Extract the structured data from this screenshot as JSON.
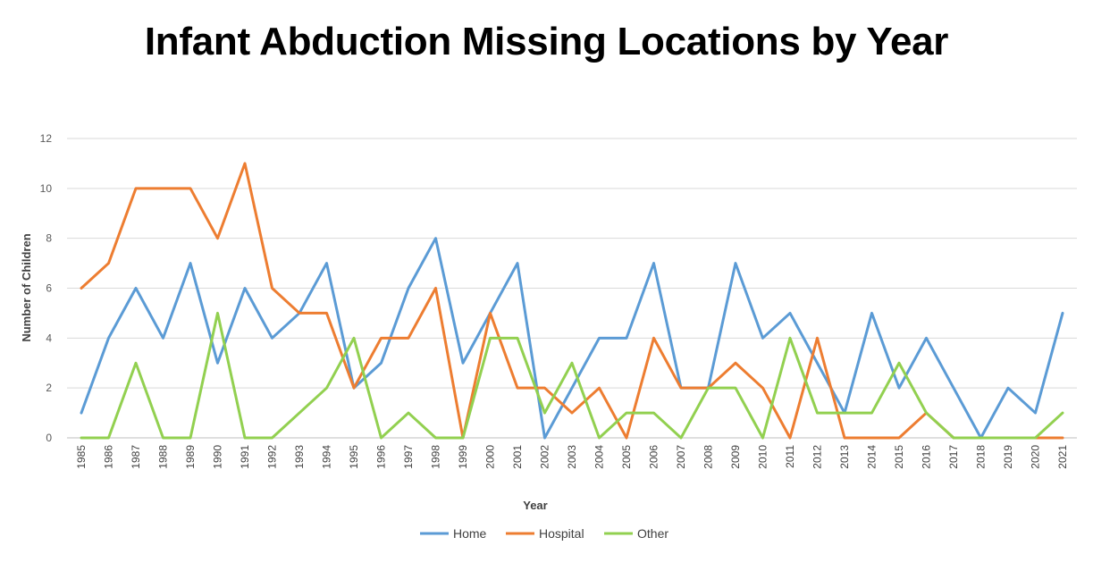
{
  "chart_data": {
    "type": "line",
    "title": "Infant Abduction Missing Locations by Year",
    "xlabel": "Year",
    "ylabel": "Number of Children",
    "ylim": [
      0,
      12
    ],
    "yticks": [
      0,
      2,
      4,
      6,
      8,
      10,
      12
    ],
    "grid": true,
    "legend_position": "bottom",
    "categories": [
      "1985",
      "1986",
      "1987",
      "1988",
      "1989",
      "1990",
      "1991",
      "1992",
      "1993",
      "1994",
      "1995",
      "1996",
      "1997",
      "1998",
      "1999",
      "2000",
      "2001",
      "2002",
      "2003",
      "2004",
      "2005",
      "2006",
      "2007",
      "2008",
      "2009",
      "2010",
      "2011",
      "2012",
      "2013",
      "2014",
      "2015",
      "2016",
      "2017",
      "2018",
      "2019",
      "2020",
      "2021"
    ],
    "series": [
      {
        "name": "Home",
        "color": "#5B9BD5",
        "values": [
          1,
          4,
          6,
          4,
          7,
          3,
          6,
          4,
          5,
          7,
          2,
          3,
          6,
          8,
          3,
          5,
          7,
          0,
          2,
          4,
          4,
          7,
          2,
          2,
          7,
          4,
          5,
          3,
          1,
          5,
          2,
          4,
          2,
          0,
          2,
          1,
          5
        ]
      },
      {
        "name": "Hospital",
        "color": "#ED7D31",
        "values": [
          6,
          7,
          10,
          10,
          10,
          8,
          11,
          6,
          5,
          5,
          2,
          4,
          4,
          6,
          0,
          5,
          2,
          2,
          1,
          2,
          0,
          4,
          2,
          2,
          3,
          2,
          0,
          4,
          0,
          0,
          0,
          1,
          0,
          0,
          0,
          0,
          0
        ]
      },
      {
        "name": "Other",
        "color": "#92D050",
        "values": [
          0,
          0,
          3,
          0,
          0,
          5,
          0,
          0,
          1,
          2,
          4,
          0,
          1,
          0,
          0,
          4,
          4,
          1,
          3,
          0,
          1,
          1,
          0,
          2,
          2,
          0,
          4,
          1,
          1,
          1,
          3,
          1,
          0,
          0,
          0,
          0,
          1
        ]
      }
    ]
  }
}
